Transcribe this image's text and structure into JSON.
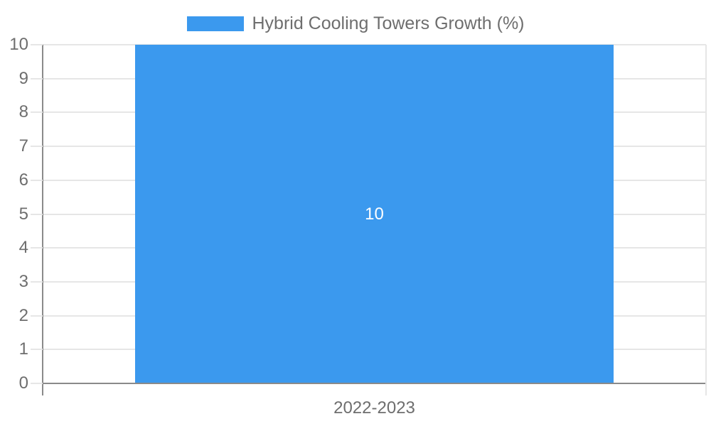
{
  "chart_data": {
    "type": "bar",
    "title": "Hybrid Cooling Towers Growth (%)",
    "categories": [
      "2022-2023"
    ],
    "series": [
      {
        "name": "Hybrid Cooling Towers Growth (%)",
        "values": [
          10
        ]
      }
    ],
    "values": [
      10
    ],
    "bar_value_labels": [
      "10"
    ],
    "xlabel": "",
    "ylabel": "",
    "ylim": [
      0,
      10
    ],
    "yticks": [
      0,
      1,
      2,
      3,
      4,
      5,
      6,
      7,
      8,
      9,
      10
    ],
    "grid": true,
    "legend_position": "top"
  },
  "colors": {
    "bar": "#3B99EE",
    "grid": "#E6E6E6",
    "axis": "#8A8A8A",
    "text": "#6E6E6E",
    "bar_label": "#FFFFFF",
    "background": "#FFFFFF"
  }
}
